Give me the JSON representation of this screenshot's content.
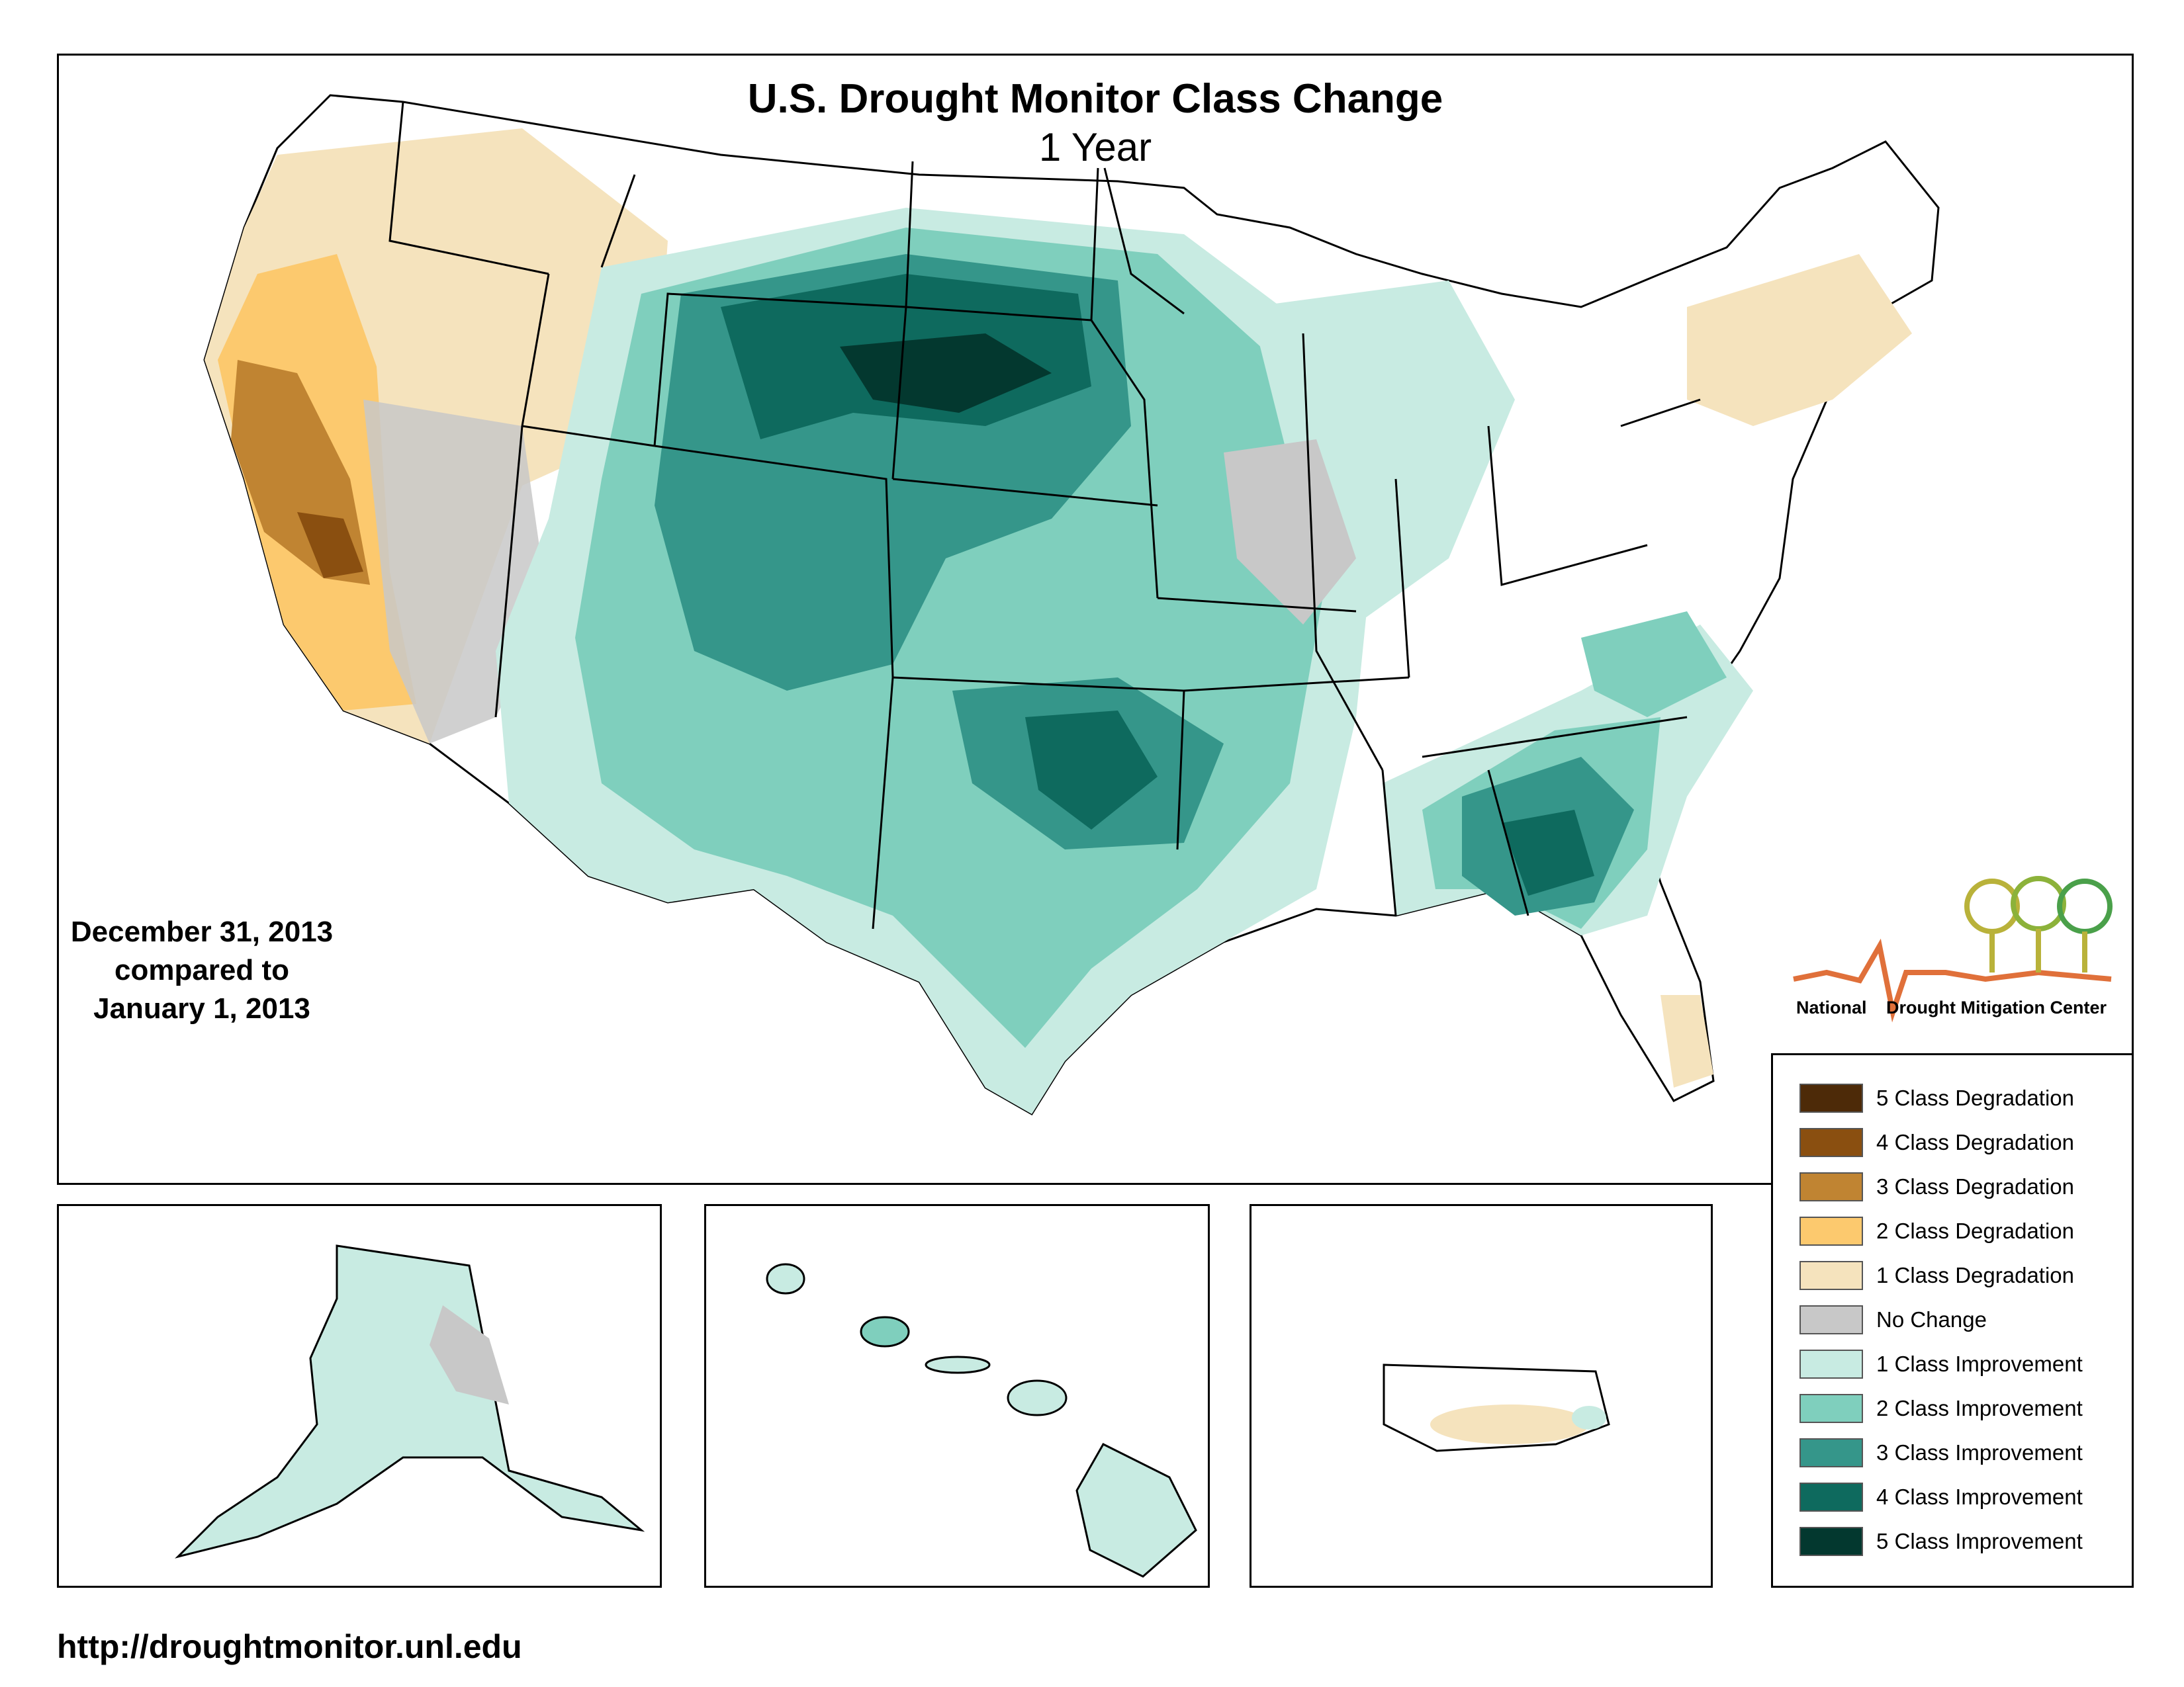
{
  "map": {
    "title": "U.S. Drought Monitor Class Change",
    "subtitle": "1 Year",
    "date_line1": "December 31, 2013",
    "date_line2": "compared to",
    "date_line3": "January 1, 2013",
    "url": "http://droughtmonitor.unl.edu"
  },
  "logo": {
    "word1": "National",
    "word2": "Drought Mitigation Center"
  },
  "legend": {
    "items": [
      {
        "label": "5 Class Degradation",
        "color": "#4d2a08"
      },
      {
        "label": "4 Class Degradation",
        "color": "#8a4f10"
      },
      {
        "label": "3 Class Degradation",
        "color": "#c08432"
      },
      {
        "label": "2 Class Degradation",
        "color": "#fcc96e"
      },
      {
        "label": "1 Class Degradation",
        "color": "#f5e3bd"
      },
      {
        "label": "No Change",
        "color": "#c8c8c8"
      },
      {
        "label": "1 Class Improvement",
        "color": "#c8ebe2"
      },
      {
        "label": "2 Class Improvement",
        "color": "#7fcfbd"
      },
      {
        "label": "3 Class Improvement",
        "color": "#35968a"
      },
      {
        "label": "4 Class Improvement",
        "color": "#0e6a5e"
      },
      {
        "label": "5 Class Improvement",
        "color": "#03382f"
      }
    ]
  }
}
